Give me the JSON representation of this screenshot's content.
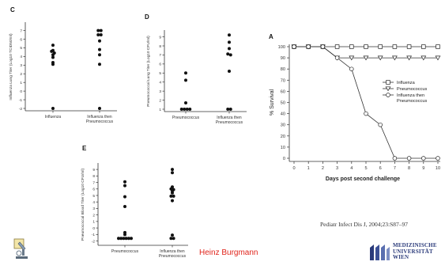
{
  "chart_data": [
    {
      "type": "scatter",
      "panel": "C",
      "ylabel": "Influenza Lung Titer (Log10 TCID50/ml)",
      "yticks": [
        -2,
        -1,
        0,
        1,
        2,
        3,
        4,
        5,
        6,
        7
      ],
      "ylim": [
        -2,
        7.6
      ],
      "categories": [
        "Influenza",
        "Influenza then Pneumococcus"
      ],
      "groups": [
        {
          "category": "Influenza",
          "values": [
            5.3,
            4.7,
            4.6,
            4.2,
            4.4,
            3.9,
            3.3,
            3.1,
            -2.0
          ]
        },
        {
          "category": "Influenza then Pneumococcus",
          "values": [
            7.0,
            7.0,
            6.5,
            6.5,
            5.8,
            4.8,
            4.2,
            3.1,
            -2.0
          ]
        }
      ]
    },
    {
      "type": "scatter",
      "panel": "D",
      "ylabel": "Pneumococcal Lung Titer (Log10 CFU/ml)",
      "yticks": [
        1,
        2,
        3,
        4,
        5,
        6,
        7,
        8,
        9
      ],
      "ylim": [
        1,
        9.4
      ],
      "categories": [
        "Pneumococcus",
        "Influenza then Pneumococcus"
      ],
      "groups": [
        {
          "category": "Pneumococcus",
          "values": [
            5.0,
            4.2,
            1.7,
            1.0,
            1.0,
            1.0,
            1.0
          ]
        },
        {
          "category": "Influenza then Pneumococcus",
          "values": [
            9.2,
            8.4,
            7.7,
            7.1,
            7.0,
            5.2,
            1.0,
            1.0
          ]
        }
      ]
    },
    {
      "type": "scatter",
      "panel": "E",
      "ylabel": "Pneumococcal Blood Titer (Log10 CFU/ml)",
      "yticks": [
        -2,
        -1,
        0,
        1,
        2,
        3,
        4,
        5,
        6,
        7,
        8,
        9
      ],
      "ylim": [
        -2.3,
        9.5
      ],
      "categories": [
        "Pneumococcus",
        "Influenza then Pneumococcus"
      ],
      "groups": [
        {
          "category": "Pneumococcus",
          "values": [
            7.1,
            6.5,
            4.8,
            3.3,
            -0.7,
            -1.0,
            -1.6,
            -1.6,
            -1.6,
            -1.6,
            -1.6,
            -1.6
          ]
        },
        {
          "category": "Influenza then Pneumococcus",
          "values": [
            9.0,
            8.5,
            6.3,
            6.0,
            5.9,
            5.7,
            5.4,
            4.9,
            4.9,
            4.2,
            -1.1,
            -1.6,
            -1.6
          ]
        }
      ]
    },
    {
      "type": "line",
      "panel": "A",
      "xlabel": "Days post second challenge",
      "ylabel": "% Survival",
      "x": [
        0,
        1,
        2,
        3,
        4,
        5,
        6,
        7,
        8,
        9,
        10
      ],
      "xlim": [
        0,
        10
      ],
      "ylim": [
        0,
        100
      ],
      "yticks": [
        0,
        10,
        20,
        30,
        40,
        50,
        60,
        70,
        80,
        90,
        100
      ],
      "legend_position": "upper-right",
      "series": [
        {
          "name": "Influenza",
          "marker": "square",
          "values": [
            100,
            100,
            100,
            100,
            100,
            100,
            100,
            100,
            100,
            100,
            100
          ]
        },
        {
          "name": "Pneumococcus",
          "marker": "triangle-down",
          "values": [
            100,
            100,
            100,
            90,
            90,
            90,
            90,
            90,
            90,
            90,
            90
          ]
        },
        {
          "name": "Influenza then Pneumococcus",
          "marker": "circle",
          "values": [
            100,
            100,
            100,
            90,
            80,
            40,
            30,
            0,
            0,
            0,
            0
          ]
        }
      ]
    }
  ],
  "citation": "Pediatr Infect Dis J, 2004;23:S87–97",
  "author": "Heinz Burgmann",
  "university": [
    "MEDIZINISCHE",
    "UNIVERSITÄT",
    "WIEN"
  ]
}
